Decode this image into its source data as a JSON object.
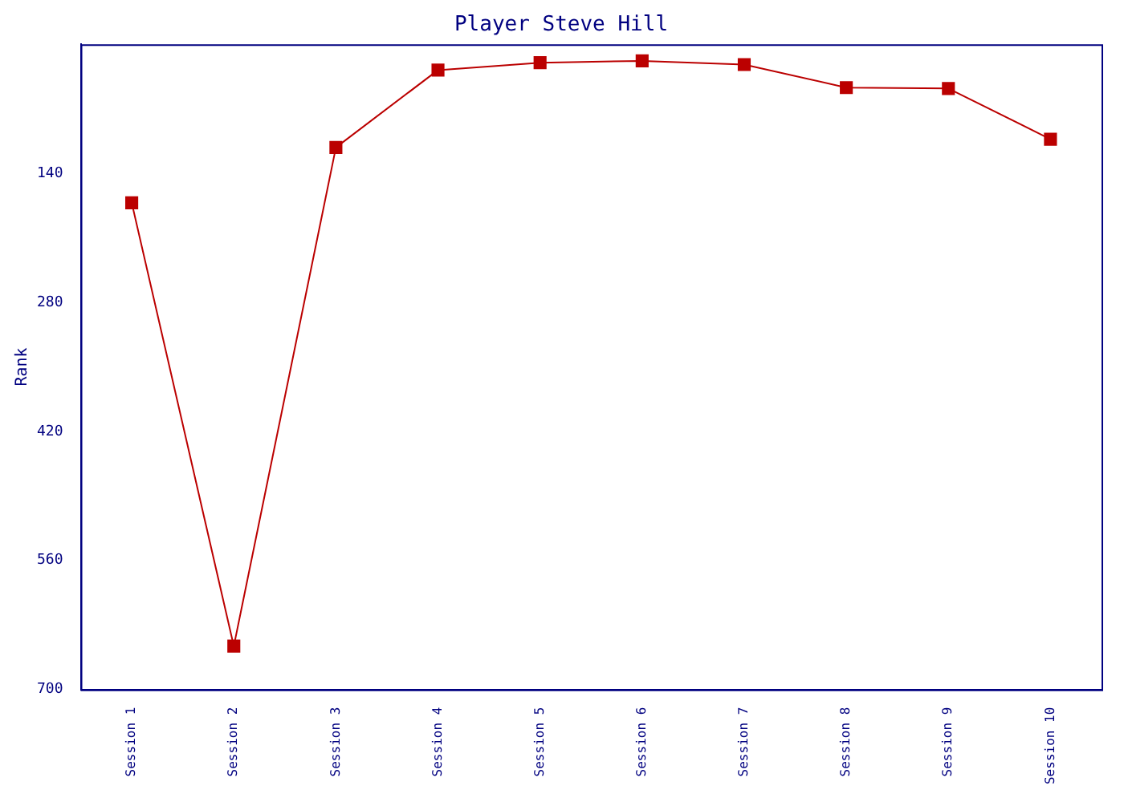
{
  "chart_data": {
    "type": "line",
    "title": "Player Steve Hill",
    "ylabel": "Rank",
    "categories": [
      "Session 1",
      "Session 2",
      "Session 3",
      "Session 4",
      "Session 5",
      "Session 6",
      "Session 7",
      "Session 8",
      "Session 9",
      "Session 10"
    ],
    "series": [
      {
        "color": "#bb0000",
        "values": [
          172,
          653,
          112,
          28,
          20,
          18,
          22,
          47,
          48,
          103
        ]
      }
    ],
    "ylim": [
      700,
      0
    ],
    "yticks": [
      140,
      280,
      420,
      560,
      700
    ],
    "grid": false,
    "legend": false,
    "marker": "square",
    "line_style": "solid"
  }
}
